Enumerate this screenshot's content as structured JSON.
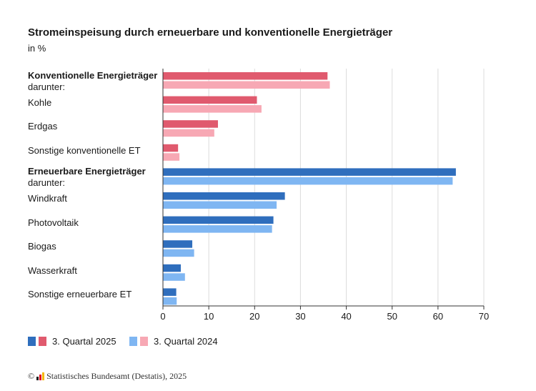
{
  "chart_data": {
    "type": "bar",
    "orientation": "horizontal",
    "title": "Stromeinspeisung durch erneuerbare und konventionelle Energieträger",
    "subtitle": "in %",
    "categories": [
      "Konventionelle Energieträger",
      "Kohle",
      "Erdgas",
      "Sonstige konventionelle ET",
      "Erneuerbare Energieträger",
      "Windkraft",
      "Photovoltaik",
      "Biogas",
      "Wasserkraft",
      "Sonstige erneuerbare ET"
    ],
    "group_flags": [
      true,
      false,
      false,
      false,
      true,
      false,
      false,
      false,
      false,
      false
    ],
    "group_sublabel": "darunter:",
    "series": [
      {
        "name": "3. Quartal 2025",
        "values": [
          35.9,
          20.5,
          12.0,
          3.3,
          63.9,
          26.6,
          24.1,
          6.4,
          3.9,
          2.9
        ]
      },
      {
        "name": "3. Quartal 2024",
        "values": [
          36.4,
          21.5,
          11.2,
          3.6,
          63.2,
          24.8,
          23.8,
          6.8,
          4.8,
          3.0
        ]
      }
    ],
    "xlim": [
      0,
      70
    ],
    "xticks": [
      "0",
      "10",
      "20",
      "30",
      "40",
      "50",
      "60",
      "70"
    ],
    "grid": true,
    "legend_position": "bottom-left"
  },
  "colors": {
    "conv_2025": "#e05a6e",
    "conv_2024": "#f7a8b4",
    "ren_2025": "#2f6ebd",
    "ren_2024": "#7fb6f2",
    "grid": "#dcdcdc",
    "axis": "#333333"
  },
  "footer": {
    "copyright": "©",
    "source": "Statistisches Bundesamt (Destatis), 2025"
  }
}
